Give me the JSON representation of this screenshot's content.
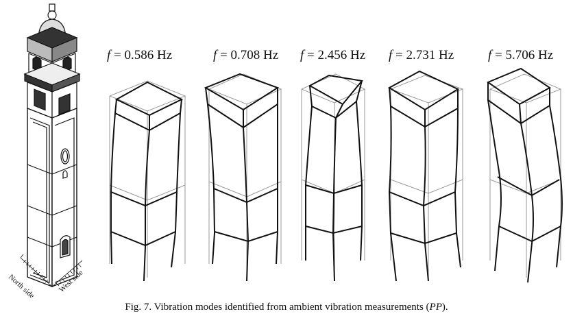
{
  "caption": {
    "prefix": "Fig. 7.  Vibration modes identified from ambient vibration measurements (",
    "italic": "PP",
    "suffix": ")."
  },
  "side_labels": {
    "north": "North side",
    "west": "West side"
  },
  "modes": [
    {
      "symbol": "f",
      "value": "= 0.586 Hz"
    },
    {
      "symbol": "f",
      "value": "= 0.708 Hz"
    },
    {
      "symbol": "f",
      "value": "= 2.456 Hz"
    },
    {
      "symbol": "f",
      "value": "= 2.731 Hz"
    },
    {
      "symbol": "f",
      "value": "= 5.706 Hz"
    }
  ]
}
